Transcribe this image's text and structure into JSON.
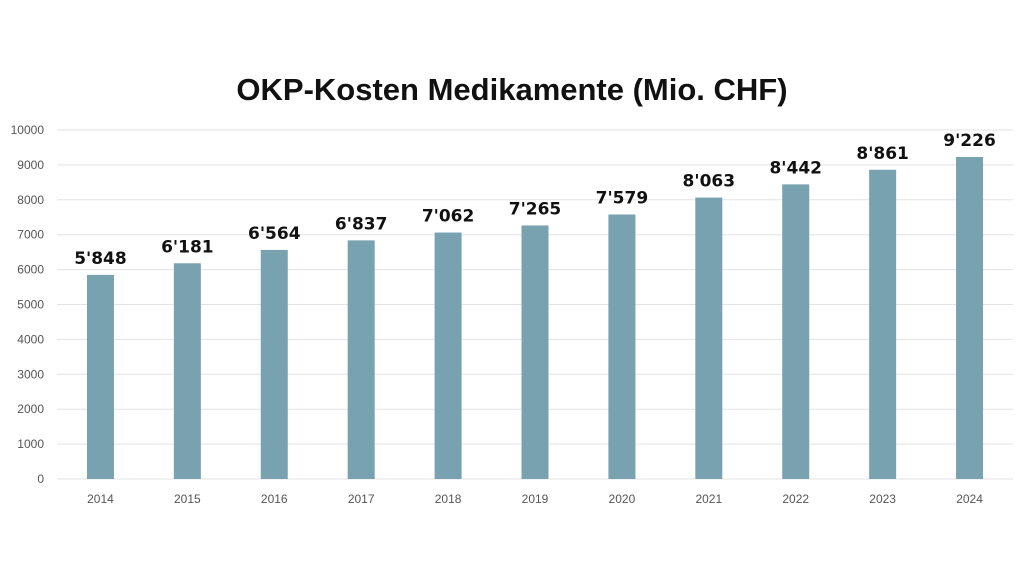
{
  "chart_data": {
    "type": "bar",
    "title": "OKP-Kosten Medikamente (Mio. CHF)",
    "categories": [
      "2014",
      "2015",
      "2016",
      "2017",
      "2018",
      "2019",
      "2020",
      "2021",
      "2022",
      "2023",
      "2024"
    ],
    "values": [
      5848,
      6181,
      6564,
      6837,
      7062,
      7265,
      7579,
      8063,
      8442,
      8861,
      9226
    ],
    "data_labels": [
      "5'848",
      "6'181",
      "6'564",
      "6'837",
      "7'062",
      "7'265",
      "7'579",
      "8'063",
      "8'442",
      "8'861",
      "9'226"
    ],
    "yticks": [
      0,
      1000,
      2000,
      3000,
      4000,
      5000,
      6000,
      7000,
      8000,
      9000,
      10000
    ],
    "ylim": [
      0,
      10000
    ],
    "xlabel": "",
    "ylabel": "",
    "grid": true,
    "legend": "none",
    "bar_color": "#78A2B0",
    "grid_color": "#E3E3E3"
  }
}
